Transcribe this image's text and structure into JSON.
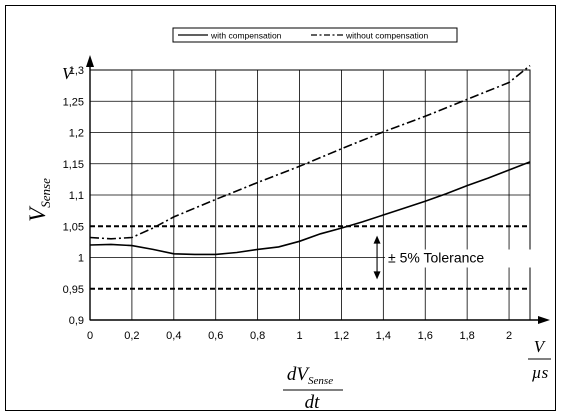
{
  "chart_data": {
    "type": "line",
    "title": "",
    "xlabel": {
      "numerator": "dV",
      "numerator_sub": "Sense",
      "denominator": "dt"
    },
    "ylabel": {
      "main": "V",
      "sub": "Sense"
    },
    "x_unit": {
      "numerator": "V",
      "denominator": "µs"
    },
    "y_unit": "V",
    "xlim": [
      0,
      2.1
    ],
    "ylim": [
      0.9,
      1.3
    ],
    "x_ticks": [
      0,
      0.2,
      0.4,
      0.6,
      0.8,
      1,
      1.2,
      1.4,
      1.6,
      1.8,
      2
    ],
    "x_tick_labels": [
      "0",
      "0,2",
      "0,4",
      "0,6",
      "0,8",
      "1",
      "1,2",
      "1,4",
      "1,6",
      "1,8",
      "2"
    ],
    "y_ticks": [
      0.9,
      0.95,
      1,
      1.05,
      1.1,
      1.15,
      1.2,
      1.25,
      1.3
    ],
    "y_tick_labels": [
      "0,9",
      "0,95",
      "1",
      "1,05",
      "1,1",
      "1,15",
      "1,2",
      "1,25",
      "1,3"
    ],
    "grid": true,
    "legend_position": "top",
    "series": [
      {
        "name": "with compensation",
        "style": "solid",
        "color": "#000000",
        "points": [
          [
            0,
            1.02
          ],
          [
            0.1,
            1.021
          ],
          [
            0.2,
            1.019
          ],
          [
            0.3,
            1.013
          ],
          [
            0.4,
            1.006
          ],
          [
            0.5,
            1.005
          ],
          [
            0.6,
            1.005
          ],
          [
            0.7,
            1.008
          ],
          [
            0.8,
            1.013
          ],
          [
            0.9,
            1.017
          ],
          [
            1.0,
            1.026
          ],
          [
            1.1,
            1.038
          ],
          [
            1.2,
            1.047
          ],
          [
            1.3,
            1.057
          ],
          [
            1.4,
            1.068
          ],
          [
            1.5,
            1.079
          ],
          [
            1.6,
            1.09
          ],
          [
            1.7,
            1.102
          ],
          [
            1.8,
            1.115
          ],
          [
            1.9,
            1.127
          ],
          [
            2.0,
            1.14
          ],
          [
            2.1,
            1.153
          ]
        ]
      },
      {
        "name": "without compensation",
        "style": "dashdot",
        "color": "#000000",
        "points": [
          [
            0,
            1.032
          ],
          [
            0.1,
            1.03
          ],
          [
            0.2,
            1.032
          ],
          [
            0.3,
            1.047
          ],
          [
            0.4,
            1.065
          ],
          [
            0.6,
            1.093
          ],
          [
            0.8,
            1.12
          ],
          [
            1.0,
            1.146
          ],
          [
            1.2,
            1.174
          ],
          [
            1.4,
            1.201
          ],
          [
            1.6,
            1.226
          ],
          [
            1.8,
            1.253
          ],
          [
            2.0,
            1.28
          ],
          [
            2.1,
            1.307
          ]
        ]
      }
    ],
    "reference_lines": [
      {
        "y": 1.05,
        "style": "dashed",
        "color": "#000000"
      },
      {
        "y": 0.95,
        "style": "dashed",
        "color": "#000000"
      }
    ],
    "annotations": [
      {
        "text": "± 5% Tolerance",
        "x": 1.37,
        "y": 1.0,
        "arrow_from": 1.035,
        "arrow_to": 0.965
      }
    ]
  }
}
